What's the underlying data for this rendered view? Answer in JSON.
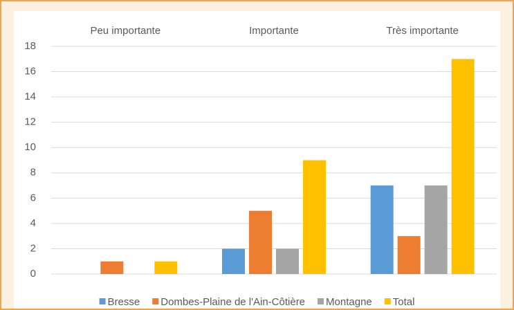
{
  "chart_data": {
    "type": "bar",
    "categories": [
      "Peu importante",
      "Importante",
      "Très importante"
    ],
    "series": [
      {
        "name": "Bresse",
        "color": "#5b9bd5",
        "values": [
          0,
          2,
          7
        ]
      },
      {
        "name": "Dombes-Plaine de l'Ain-Côtière",
        "color": "#ed7d31",
        "values": [
          1,
          5,
          3
        ]
      },
      {
        "name": "Montagne",
        "color": "#a5a5a5",
        "values": [
          0,
          2,
          7
        ]
      },
      {
        "name": "Total",
        "color": "#ffc000",
        "values": [
          1,
          9,
          17
        ]
      }
    ],
    "ylim": [
      0,
      18
    ],
    "yticks": [
      0,
      2,
      4,
      6,
      8,
      10,
      12,
      14,
      16,
      18
    ],
    "grid": true,
    "legend": "bottom"
  }
}
